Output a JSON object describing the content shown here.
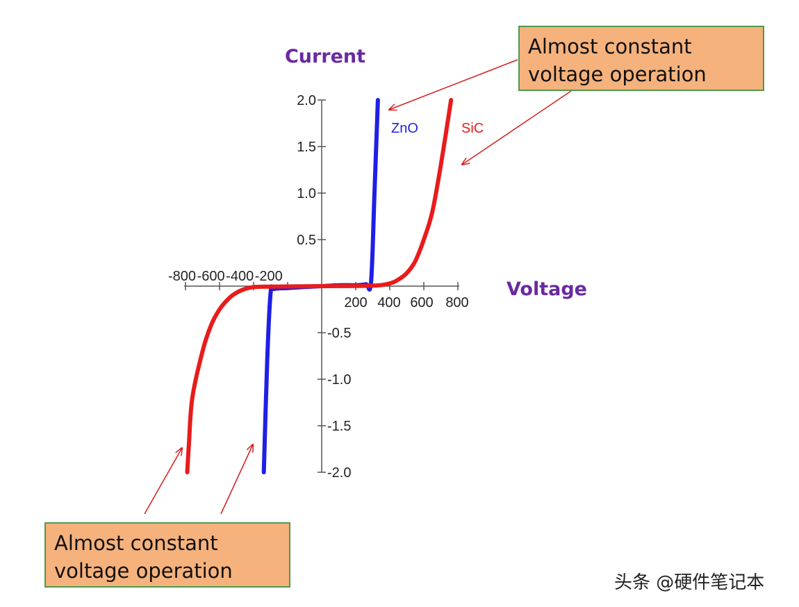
{
  "chart_data": {
    "type": "line",
    "ylabel": "Current",
    "xlabel": "Voltage",
    "xlim": [
      -800,
      800
    ],
    "ylim": [
      -2.0,
      2.0
    ],
    "x_ticks": [
      -800,
      -600,
      -400,
      -200,
      200,
      400,
      600,
      800
    ],
    "x_tick_labels_left": "-800 -600 -400 -200",
    "x_tick_labels_right": [
      "200",
      "400",
      "600",
      "800"
    ],
    "y_ticks": [
      2.0,
      1.5,
      1.0,
      0.5,
      -0.5,
      -1.0,
      -1.5,
      -2.0
    ],
    "y_tick_labels": [
      "2.0",
      "1.5",
      "1.0",
      "0.5",
      "-0.5",
      "-1.0",
      "-1.5",
      "-2.0"
    ],
    "grid": false,
    "series": [
      {
        "name": "ZnO",
        "color": "#1f1fe6",
        "points": [
          [
            -340,
            -2.0
          ],
          [
            -320,
            -0.8
          ],
          [
            -300,
            -0.07
          ],
          [
            -280,
            -0.03
          ],
          [
            -200,
            -0.02
          ],
          [
            -100,
            -0.01
          ],
          [
            0,
            0
          ],
          [
            100,
            0.01
          ],
          [
            200,
            0.01
          ],
          [
            260,
            0.02
          ],
          [
            290,
            0.04
          ],
          [
            310,
            1.0
          ],
          [
            330,
            2.0
          ]
        ]
      },
      {
        "name": "SiC",
        "color": "#e81c1c",
        "points": [
          [
            -790,
            -2.0
          ],
          [
            -780,
            -1.7
          ],
          [
            -760,
            -1.2
          ],
          [
            -700,
            -0.7
          ],
          [
            -650,
            -0.42
          ],
          [
            -600,
            -0.25
          ],
          [
            -550,
            -0.14
          ],
          [
            -500,
            -0.07
          ],
          [
            -450,
            -0.03
          ],
          [
            -400,
            -0.01
          ],
          [
            -300,
            -0.005
          ],
          [
            0,
            0
          ],
          [
            300,
            0.005
          ],
          [
            400,
            0.03
          ],
          [
            450,
            0.07
          ],
          [
            500,
            0.14
          ],
          [
            550,
            0.27
          ],
          [
            600,
            0.5
          ],
          [
            650,
            0.8
          ],
          [
            700,
            1.3
          ],
          [
            760,
            2.0
          ]
        ]
      }
    ],
    "annotations": [
      "Almost constant voltage operation",
      "Almost constant voltage operation"
    ]
  },
  "notes": {
    "top": "Almost constant voltage operation",
    "bottom": "Almost constant voltage operation"
  },
  "watermark": "头条 @硬件笔记本",
  "colors": {
    "axis_title": "#6a2aa0",
    "zno": "#1f1fe6",
    "sic": "#e81c1c",
    "arrow": "#d22020",
    "note_fill": "#f6b27c",
    "note_border": "#4c9a4c"
  }
}
